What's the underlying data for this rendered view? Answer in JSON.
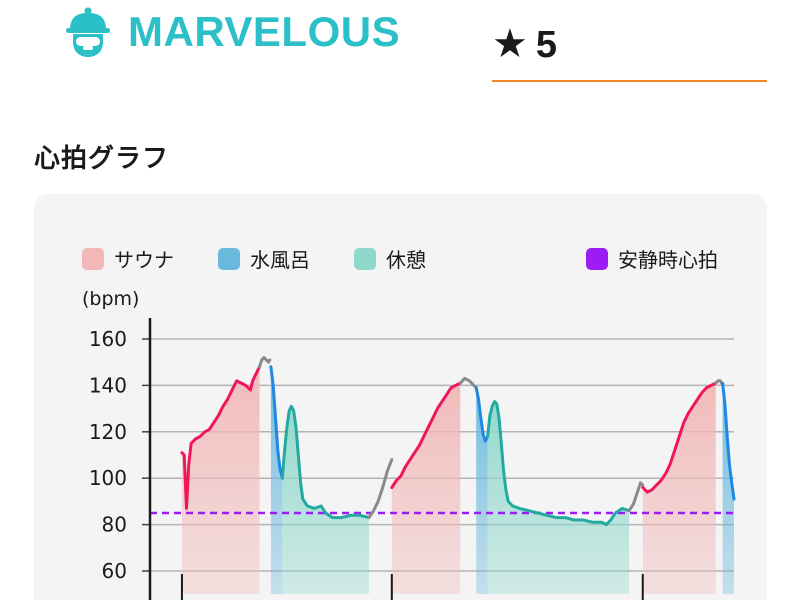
{
  "header": {
    "brand": "MARVELOUS",
    "brand_color": "#2bbfc8",
    "logo_icon": "explorer-hat-avatar-icon",
    "rating_icon": "star-icon",
    "rating_value": "5",
    "rating_underline_color": "#ef8a2a"
  },
  "section": {
    "title": "心拍グラフ"
  },
  "legend": [
    {
      "label": "サウナ",
      "color": "#f2b8b8"
    },
    {
      "label": "水風呂",
      "color": "#6ab9dd"
    },
    {
      "label": "休憩",
      "color": "#8fd8cc"
    },
    {
      "label": "安静時心拍",
      "color": "#9b1cf5"
    }
  ],
  "chart_data": {
    "type": "line",
    "ylabel": "(bpm)",
    "ylim": [
      52,
      160
    ],
    "yticks": [
      "160",
      "140",
      "120",
      "100",
      "80",
      "60"
    ],
    "grid": true,
    "resting_heart_rate": 85,
    "series_colors": {
      "sauna": "#f0165a",
      "cold_bath": "#1f88e5",
      "rest": "#23aaa0",
      "transition": "#8a8a8a"
    },
    "segments": [
      {
        "phase": "sauna",
        "points": [
          [
            0,
            111
          ],
          [
            1,
            110
          ],
          [
            2,
            87
          ],
          [
            3,
            106
          ],
          [
            4,
            115
          ],
          [
            6,
            117
          ],
          [
            8,
            118
          ],
          [
            10,
            120
          ],
          [
            12,
            121
          ],
          [
            14,
            124
          ],
          [
            16,
            127
          ],
          [
            18,
            131
          ],
          [
            20,
            134
          ],
          [
            22,
            138
          ],
          [
            24,
            142
          ],
          [
            26,
            141
          ],
          [
            28,
            140
          ],
          [
            30,
            138
          ],
          [
            31,
            142
          ],
          [
            32,
            144
          ],
          [
            33,
            146
          ],
          [
            34,
            148
          ]
        ]
      },
      {
        "phase": "transition",
        "points": [
          [
            34,
            148
          ],
          [
            35,
            151
          ],
          [
            36,
            152
          ],
          [
            37,
            151
          ],
          [
            38,
            150
          ],
          [
            38.5,
            151
          ]
        ]
      },
      {
        "phase": "cold_bath",
        "points": [
          [
            39,
            148
          ],
          [
            40,
            140
          ],
          [
            41,
            126
          ],
          [
            42,
            112
          ],
          [
            43,
            104
          ],
          [
            44,
            100
          ]
        ]
      },
      {
        "phase": "rest",
        "points": [
          [
            44,
            100
          ],
          [
            45,
            112
          ],
          [
            46,
            122
          ],
          [
            47,
            129
          ],
          [
            48,
            131
          ],
          [
            49,
            129
          ],
          [
            50,
            122
          ],
          [
            51,
            110
          ],
          [
            52,
            98
          ],
          [
            53,
            91
          ],
          [
            55,
            88
          ],
          [
            58,
            87
          ],
          [
            61,
            88
          ],
          [
            63,
            85
          ],
          [
            66,
            83
          ],
          [
            70,
            83
          ],
          [
            74,
            84
          ],
          [
            78,
            84
          ],
          [
            82,
            83
          ]
        ]
      },
      {
        "phase": "transition",
        "points": [
          [
            82,
            83
          ],
          [
            84,
            86
          ],
          [
            86,
            90
          ],
          [
            88,
            96
          ],
          [
            90,
            103
          ],
          [
            92,
            108
          ]
        ]
      },
      {
        "phase": "sauna",
        "points": [
          [
            92,
            96
          ],
          [
            94,
            99
          ],
          [
            96,
            101
          ],
          [
            98,
            105
          ],
          [
            100,
            108
          ],
          [
            102,
            111
          ],
          [
            104,
            114
          ],
          [
            106,
            118
          ],
          [
            108,
            122
          ],
          [
            110,
            126
          ],
          [
            112,
            130
          ],
          [
            114,
            133
          ],
          [
            116,
            136
          ],
          [
            118,
            139
          ],
          [
            120,
            140
          ],
          [
            122,
            141
          ]
        ]
      },
      {
        "phase": "transition",
        "points": [
          [
            122,
            141
          ],
          [
            124,
            143
          ],
          [
            126,
            142
          ],
          [
            128,
            140
          ],
          [
            129,
            139
          ]
        ]
      },
      {
        "phase": "cold_bath",
        "points": [
          [
            129,
            139
          ],
          [
            130,
            134
          ],
          [
            131,
            126
          ],
          [
            132,
            119
          ],
          [
            133,
            116
          ],
          [
            134,
            118
          ]
        ]
      },
      {
        "phase": "rest",
        "points": [
          [
            134,
            118
          ],
          [
            135,
            127
          ],
          [
            136,
            131
          ],
          [
            137,
            133
          ],
          [
            138,
            132
          ],
          [
            139,
            126
          ],
          [
            140,
            115
          ],
          [
            141,
            103
          ],
          [
            142,
            95
          ],
          [
            143,
            90
          ],
          [
            145,
            88
          ],
          [
            148,
            87
          ],
          [
            152,
            86
          ],
          [
            156,
            85
          ],
          [
            160,
            84
          ],
          [
            164,
            83
          ],
          [
            168,
            83
          ],
          [
            172,
            82
          ],
          [
            176,
            82
          ],
          [
            180,
            81
          ],
          [
            184,
            81
          ],
          [
            186,
            80
          ],
          [
            188,
            82
          ],
          [
            190,
            85
          ],
          [
            193,
            87
          ],
          [
            196,
            86
          ]
        ]
      },
      {
        "phase": "transition",
        "points": [
          [
            196,
            86
          ],
          [
            198,
            89
          ],
          [
            200,
            95
          ],
          [
            201,
            98
          ],
          [
            202,
            97
          ]
        ]
      },
      {
        "phase": "sauna",
        "points": [
          [
            202,
            96
          ],
          [
            204,
            94
          ],
          [
            206,
            95
          ],
          [
            208,
            97
          ],
          [
            210,
            99
          ],
          [
            212,
            102
          ],
          [
            214,
            106
          ],
          [
            216,
            112
          ],
          [
            218,
            118
          ],
          [
            220,
            124
          ],
          [
            222,
            128
          ],
          [
            224,
            131
          ],
          [
            226,
            134
          ],
          [
            228,
            137
          ],
          [
            230,
            139
          ],
          [
            232,
            140
          ],
          [
            234,
            141
          ]
        ]
      },
      {
        "phase": "transition",
        "points": [
          [
            234,
            141
          ],
          [
            235,
            142
          ],
          [
            236,
            142
          ],
          [
            236.5,
            141
          ]
        ]
      },
      {
        "phase": "cold_bath",
        "points": [
          [
            237,
            141
          ],
          [
            238,
            132
          ],
          [
            239,
            118
          ],
          [
            240,
            106
          ],
          [
            241,
            98
          ],
          [
            242,
            91
          ]
        ]
      }
    ],
    "bands": [
      {
        "phase": "sauna",
        "from": 0,
        "to": 34
      },
      {
        "phase": "cold_bath",
        "from": 39,
        "to": 44
      },
      {
        "phase": "rest",
        "from": 44,
        "to": 82
      },
      {
        "phase": "sauna",
        "from": 92,
        "to": 122
      },
      {
        "phase": "cold_bath",
        "from": 129,
        "to": 134
      },
      {
        "phase": "rest",
        "from": 134,
        "to": 196
      },
      {
        "phase": "sauna",
        "from": 202,
        "to": 234
      },
      {
        "phase": "cold_bath",
        "from": 237,
        "to": 242
      }
    ],
    "x_marks": [
      0,
      92,
      202
    ],
    "xlim": [
      -14,
      242
    ]
  }
}
